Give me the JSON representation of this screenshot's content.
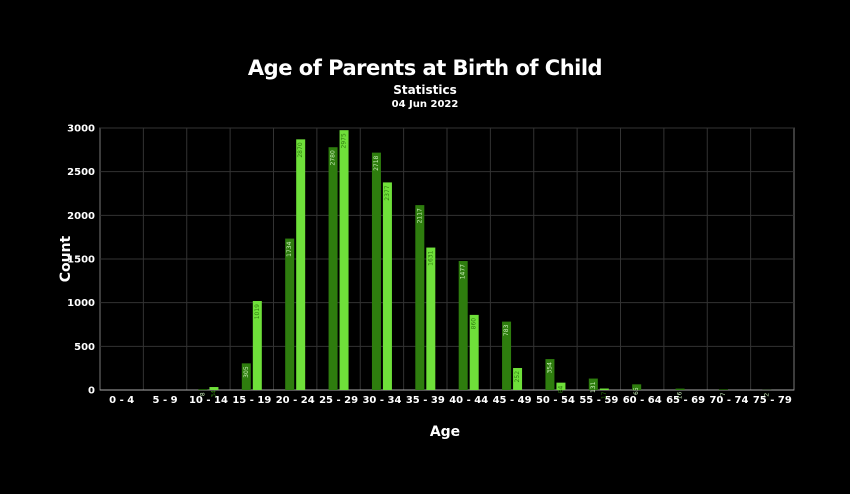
{
  "chart_data": {
    "type": "bar",
    "title": "Age of Parents at Birth of Child",
    "subtitle": "Statistics",
    "date": "04 Jun 2022",
    "xlabel": "Age",
    "ylabel": "Count",
    "ylim": [
      0,
      3000
    ],
    "yticks": [
      0,
      500,
      1000,
      1500,
      2000,
      2500,
      3000
    ],
    "grid": true,
    "categories": [
      "0 - 4",
      "5 - 9",
      "10 - 14",
      "15 - 19",
      "20 - 24",
      "25 - 29",
      "30 - 34",
      "35 - 39",
      "40 - 44",
      "45 - 49",
      "50 - 54",
      "55 - 59",
      "60 - 64",
      "65 - 69",
      "70 - 74",
      "75 - 79"
    ],
    "series": [
      {
        "color": "#2e7d0e",
        "values": [
          0,
          0,
          8,
          305,
          1734,
          2780,
          2718,
          2117,
          1477,
          783,
          354,
          131,
          65,
          16,
          7,
          2
        ]
      },
      {
        "color": "#6fe03a",
        "values": [
          0,
          0,
          34,
          1019,
          2870,
          2975,
          2377,
          1631,
          860,
          252,
          84,
          17,
          0,
          0,
          0,
          0
        ]
      }
    ],
    "labels": [
      [
        null,
        null,
        "8",
        "305",
        "1734",
        "2780",
        "2718",
        "2117",
        "1477",
        "783",
        "354",
        "131",
        "65",
        "16",
        "7",
        "2"
      ],
      [
        null,
        null,
        "34",
        "1019",
        "2870",
        "2975",
        "2377",
        "1631",
        "860",
        "252",
        "84",
        "17",
        null,
        null,
        null,
        null
      ]
    ]
  }
}
